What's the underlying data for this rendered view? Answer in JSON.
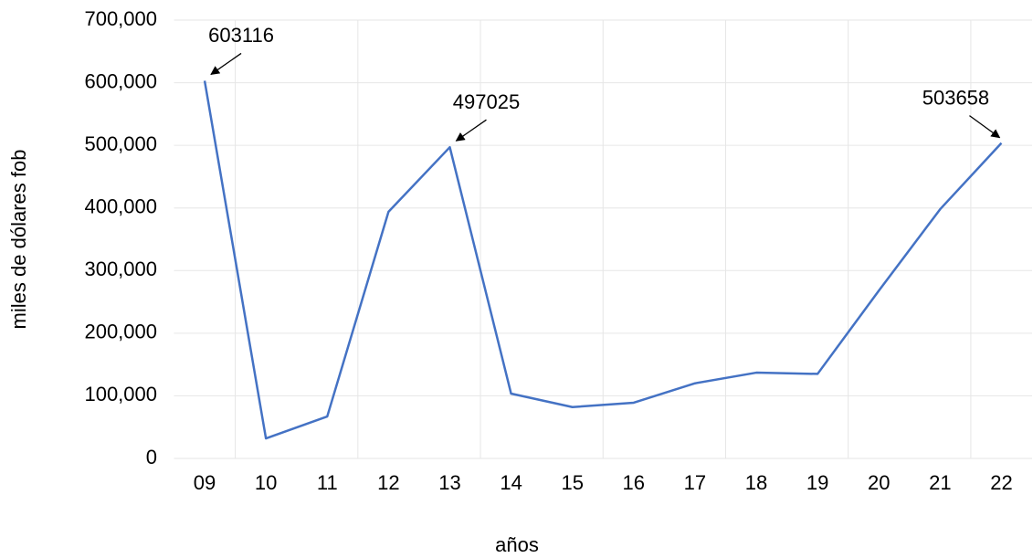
{
  "chart_data": {
    "type": "line",
    "xlabel": "años",
    "ylabel": "miles de dólares fob",
    "categories": [
      "09",
      "10",
      "11",
      "12",
      "13",
      "14",
      "15",
      "16",
      "17",
      "18",
      "19",
      "20",
      "21",
      "22"
    ],
    "values": [
      603116,
      32000,
      67000,
      394000,
      497025,
      103500,
      82000,
      89000,
      120000,
      137000,
      135000,
      268000,
      398000,
      503658
    ],
    "value_labels": [
      "603116",
      null,
      null,
      null,
      "497025",
      null,
      null,
      null,
      null,
      null,
      null,
      null,
      null,
      "503658"
    ],
    "color": "#4472c4",
    "ylim": [
      0,
      700000
    ],
    "yticks": [
      0,
      {
        "value": 100000,
        "label": "100,000"
      },
      {
        "value": 200000,
        "label": "200,000"
      },
      {
        "value": 300000,
        "label": "300,000"
      },
      {
        "value": 400000,
        "label": "400,000"
      },
      {
        "value": 500000,
        "label": "500,000"
      },
      {
        "value": 600000,
        "label": "600,000"
      },
      {
        "value": 700000,
        "label": "700,000"
      }
    ],
    "grid": true
  }
}
